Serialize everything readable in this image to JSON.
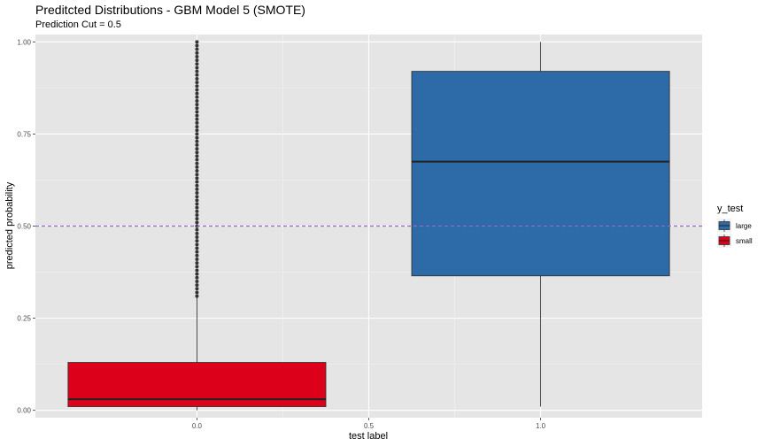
{
  "chart_data": {
    "type": "boxplot",
    "title": "Preditcted Distributions - GBM Model 5 (SMOTE)",
    "subtitle": "Prediction Cut = 0.5",
    "xlabel": "test label",
    "ylabel": "predicted probability",
    "x_ticks": [
      "0.0",
      "0.5",
      "1.0"
    ],
    "y_ticks": [
      "0.00",
      "0.25",
      "0.50",
      "0.75",
      "1.00"
    ],
    "xlim": [
      -0.47,
      1.47
    ],
    "ylim": [
      -0.02,
      1.02
    ],
    "grid": true,
    "legend": {
      "title": "y_test",
      "position": "right",
      "entries": [
        {
          "label": "large",
          "color": "#2c6aa8"
        },
        {
          "label": "small",
          "color": "#dc001b"
        }
      ]
    },
    "reference_line": {
      "y": 0.5,
      "color": "#9966cc",
      "style": "dashed"
    },
    "boxes": [
      {
        "group": "small",
        "x": 0.0,
        "whisker_low": 0.0,
        "q1": 0.01,
        "median": 0.03,
        "q3": 0.13,
        "whisker_high": 0.31,
        "color": "#dc001b"
      },
      {
        "group": "large",
        "x": 1.0,
        "whisker_low": 0.01,
        "q1": 0.365,
        "median": 0.675,
        "q3": 0.92,
        "whisker_high": 1.0,
        "color": "#2c6aa8"
      }
    ],
    "outliers": [
      {
        "group": "small",
        "x": 0.0,
        "y_values": [
          0.31,
          0.32,
          0.33,
          0.34,
          0.35,
          0.36,
          0.37,
          0.38,
          0.39,
          0.4,
          0.41,
          0.42,
          0.43,
          0.44,
          0.45,
          0.46,
          0.47,
          0.48,
          0.49,
          0.5,
          0.51,
          0.52,
          0.53,
          0.54,
          0.55,
          0.56,
          0.57,
          0.58,
          0.59,
          0.6,
          0.61,
          0.62,
          0.63,
          0.64,
          0.65,
          0.66,
          0.67,
          0.68,
          0.69,
          0.7,
          0.71,
          0.72,
          0.73,
          0.74,
          0.75,
          0.76,
          0.77,
          0.78,
          0.79,
          0.8,
          0.81,
          0.82,
          0.83,
          0.84,
          0.85,
          0.86,
          0.87,
          0.88,
          0.89,
          0.9,
          0.91,
          0.92,
          0.93,
          0.94,
          0.95,
          0.96,
          0.97,
          0.98,
          0.99,
          1.0
        ]
      }
    ]
  }
}
